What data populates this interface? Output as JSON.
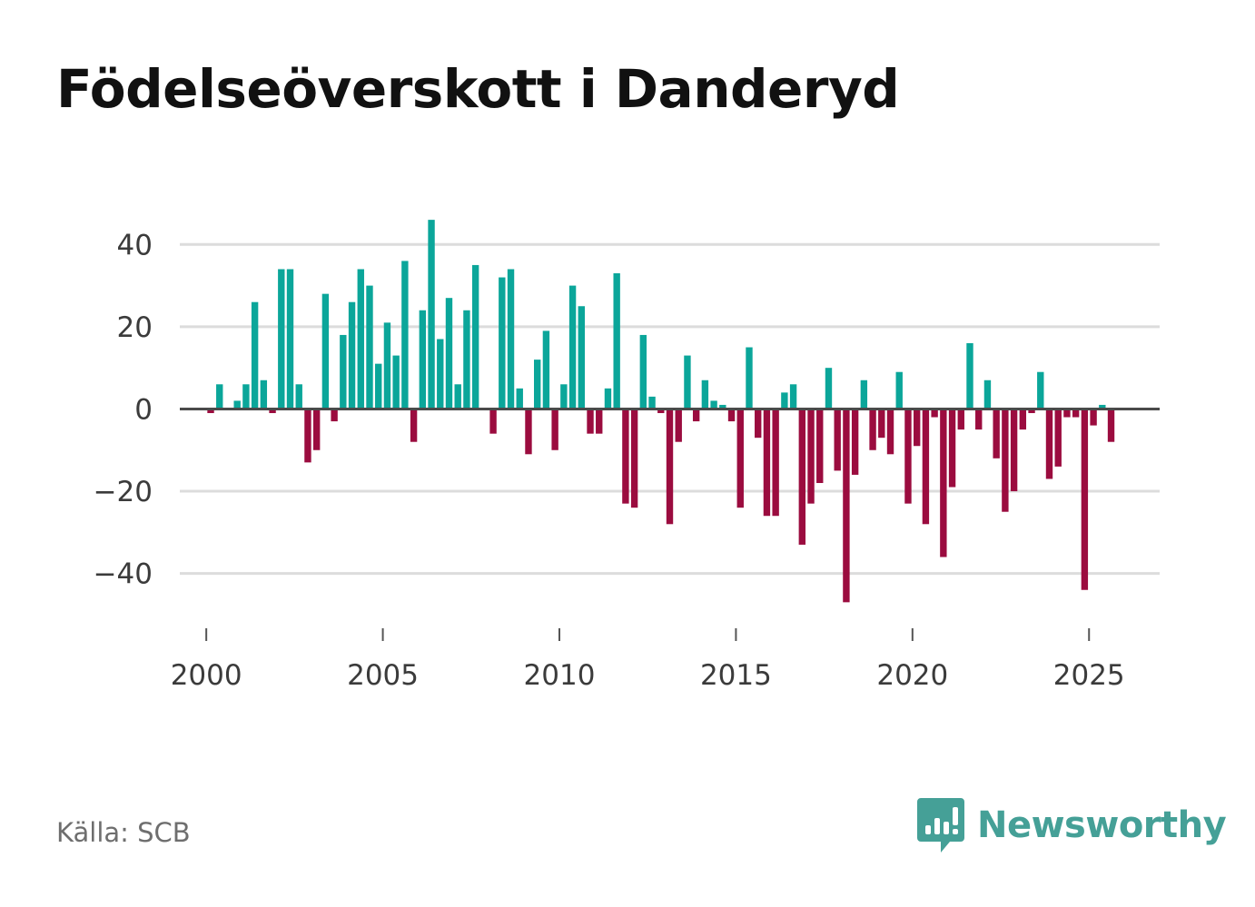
{
  "title": "Födelseöverskott i Danderyd",
  "source": "Källa: SCB",
  "brand": {
    "name": "Newsworthy",
    "icon": "newsworthy-logo-icon",
    "color": "#45a097"
  },
  "colors": {
    "positive": "#0ba69a",
    "negative": "#9b0c3f",
    "grid": "#dcdcdc",
    "zero_line": "#4a4a4a"
  },
  "chart_data": {
    "type": "bar",
    "title": "Födelseöverskott i Danderyd",
    "xlabel": "",
    "ylabel": "",
    "ylim": [
      -52,
      50
    ],
    "xlim": [
      1999.25,
      2027.0
    ],
    "y_ticks": [
      40,
      20,
      0,
      -20,
      -40
    ],
    "y_tick_labels": [
      "40",
      "20",
      "0",
      "−20",
      "−40"
    ],
    "x_ticks": [
      2000,
      2005,
      2010,
      2015,
      2020,
      2025
    ],
    "x_tick_labels": [
      "2000",
      "2005",
      "2010",
      "2015",
      "2020",
      "2025"
    ],
    "grid": true,
    "frequency": "quarterly",
    "start": "2000-Q1",
    "values": [
      -1,
      6,
      0,
      2,
      6,
      26,
      7,
      -1,
      34,
      34,
      6,
      -13,
      -10,
      28,
      -3,
      18,
      26,
      34,
      30,
      11,
      21,
      13,
      36,
      -8,
      24,
      46,
      17,
      27,
      6,
      24,
      35,
      0,
      -6,
      32,
      34,
      5,
      -11,
      12,
      19,
      -10,
      6,
      30,
      25,
      -6,
      -6,
      5,
      33,
      -23,
      -24,
      18,
      3,
      -1,
      -28,
      -8,
      13,
      -3,
      7,
      2,
      1,
      -3,
      -24,
      15,
      -7,
      -26,
      -26,
      4,
      6,
      -33,
      -23,
      -18,
      10,
      -15,
      -47,
      -16,
      7,
      -10,
      -7,
      -11,
      9,
      -23,
      -9,
      -28,
      -2,
      -36,
      -19,
      -5,
      16,
      -5,
      7,
      -12,
      -25,
      -20,
      -5,
      -1,
      9,
      -17,
      -14,
      -2,
      -2,
      -44,
      -4,
      1,
      -8
    ]
  }
}
